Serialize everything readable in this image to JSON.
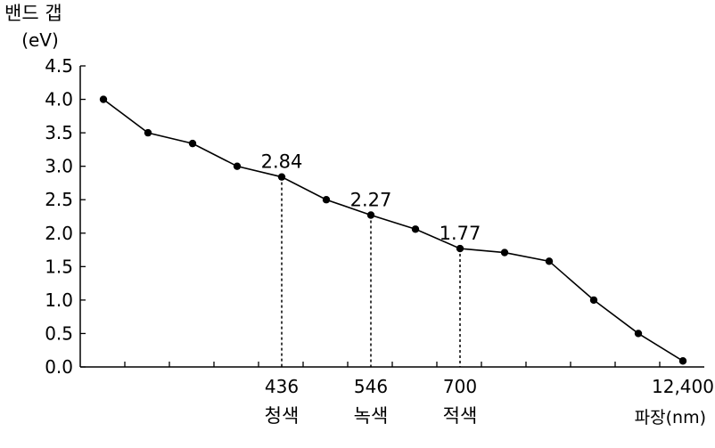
{
  "chart_data": {
    "type": "line",
    "ylabel": "밴드 갭",
    "yunit": "(eV)",
    "xlabel": "파장(nm)",
    "ylim": [
      0,
      4.5
    ],
    "yticks": [
      "0.0",
      "0.5",
      "1.0",
      "1.5",
      "2.0",
      "2.5",
      "3.0",
      "3.5",
      "4.0",
      "4.5"
    ],
    "grid": false,
    "series": [
      {
        "values": [
          4.0,
          3.5,
          3.34,
          3.0,
          2.84,
          2.5,
          2.27,
          2.06,
          1.77,
          1.71,
          1.58,
          1.0,
          0.5,
          0.09
        ]
      }
    ],
    "annotations": [
      {
        "point": 4,
        "label": "2.84",
        "xlabel": "436",
        "color_name": "청색"
      },
      {
        "point": 6,
        "label": "2.27",
        "xlabel": "546",
        "color_name": "녹색"
      },
      {
        "point": 8,
        "label": "1.77",
        "xlabel": "700",
        "color_name": "적색"
      }
    ],
    "end_label": {
      "point": 13,
      "xlabel": "12,400"
    }
  }
}
